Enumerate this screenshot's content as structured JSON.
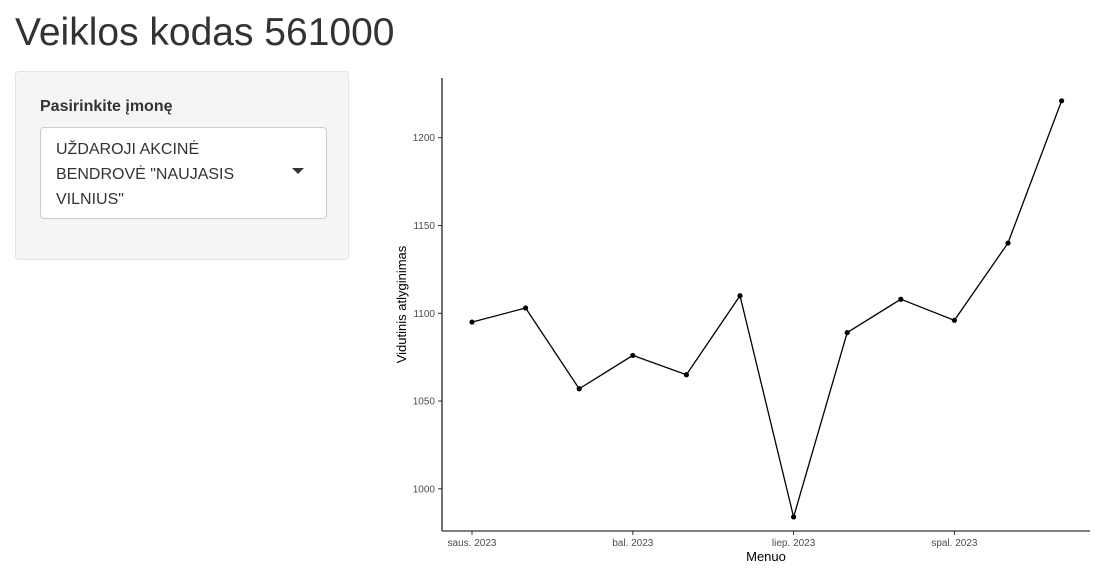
{
  "page": {
    "title": "Veiklos kodas 561000"
  },
  "sidebar": {
    "select_label": "Pasirinkite įmonę",
    "select_value": "UŽDAROJI AKCINĖ BENDROVĖ \"NAUJASIS VILNIUS\""
  },
  "chart_data": {
    "type": "line",
    "title": "",
    "xlabel": "Menuo",
    "ylabel": "Vidutinis atlyginimas",
    "x": [
      "2023-01",
      "2023-02",
      "2023-03",
      "2023-04",
      "2023-05",
      "2023-06",
      "2023-07",
      "2023-08",
      "2023-09",
      "2023-10",
      "2023-11",
      "2023-12"
    ],
    "values": [
      1095,
      1103,
      1057,
      1076,
      1065,
      1110,
      984,
      1089,
      1108,
      1096,
      1140,
      1221
    ],
    "x_ticks": [
      "saus. 2023",
      "bal. 2023",
      "liep. 2023",
      "spal. 2023"
    ],
    "x_tick_months": [
      0,
      3,
      6,
      9
    ],
    "y_ticks": [
      1000,
      1050,
      1100,
      1150,
      1200
    ],
    "ylim": [
      976,
      1234
    ],
    "grid": false,
    "line_color": "#000000",
    "point_color": "#000000"
  }
}
